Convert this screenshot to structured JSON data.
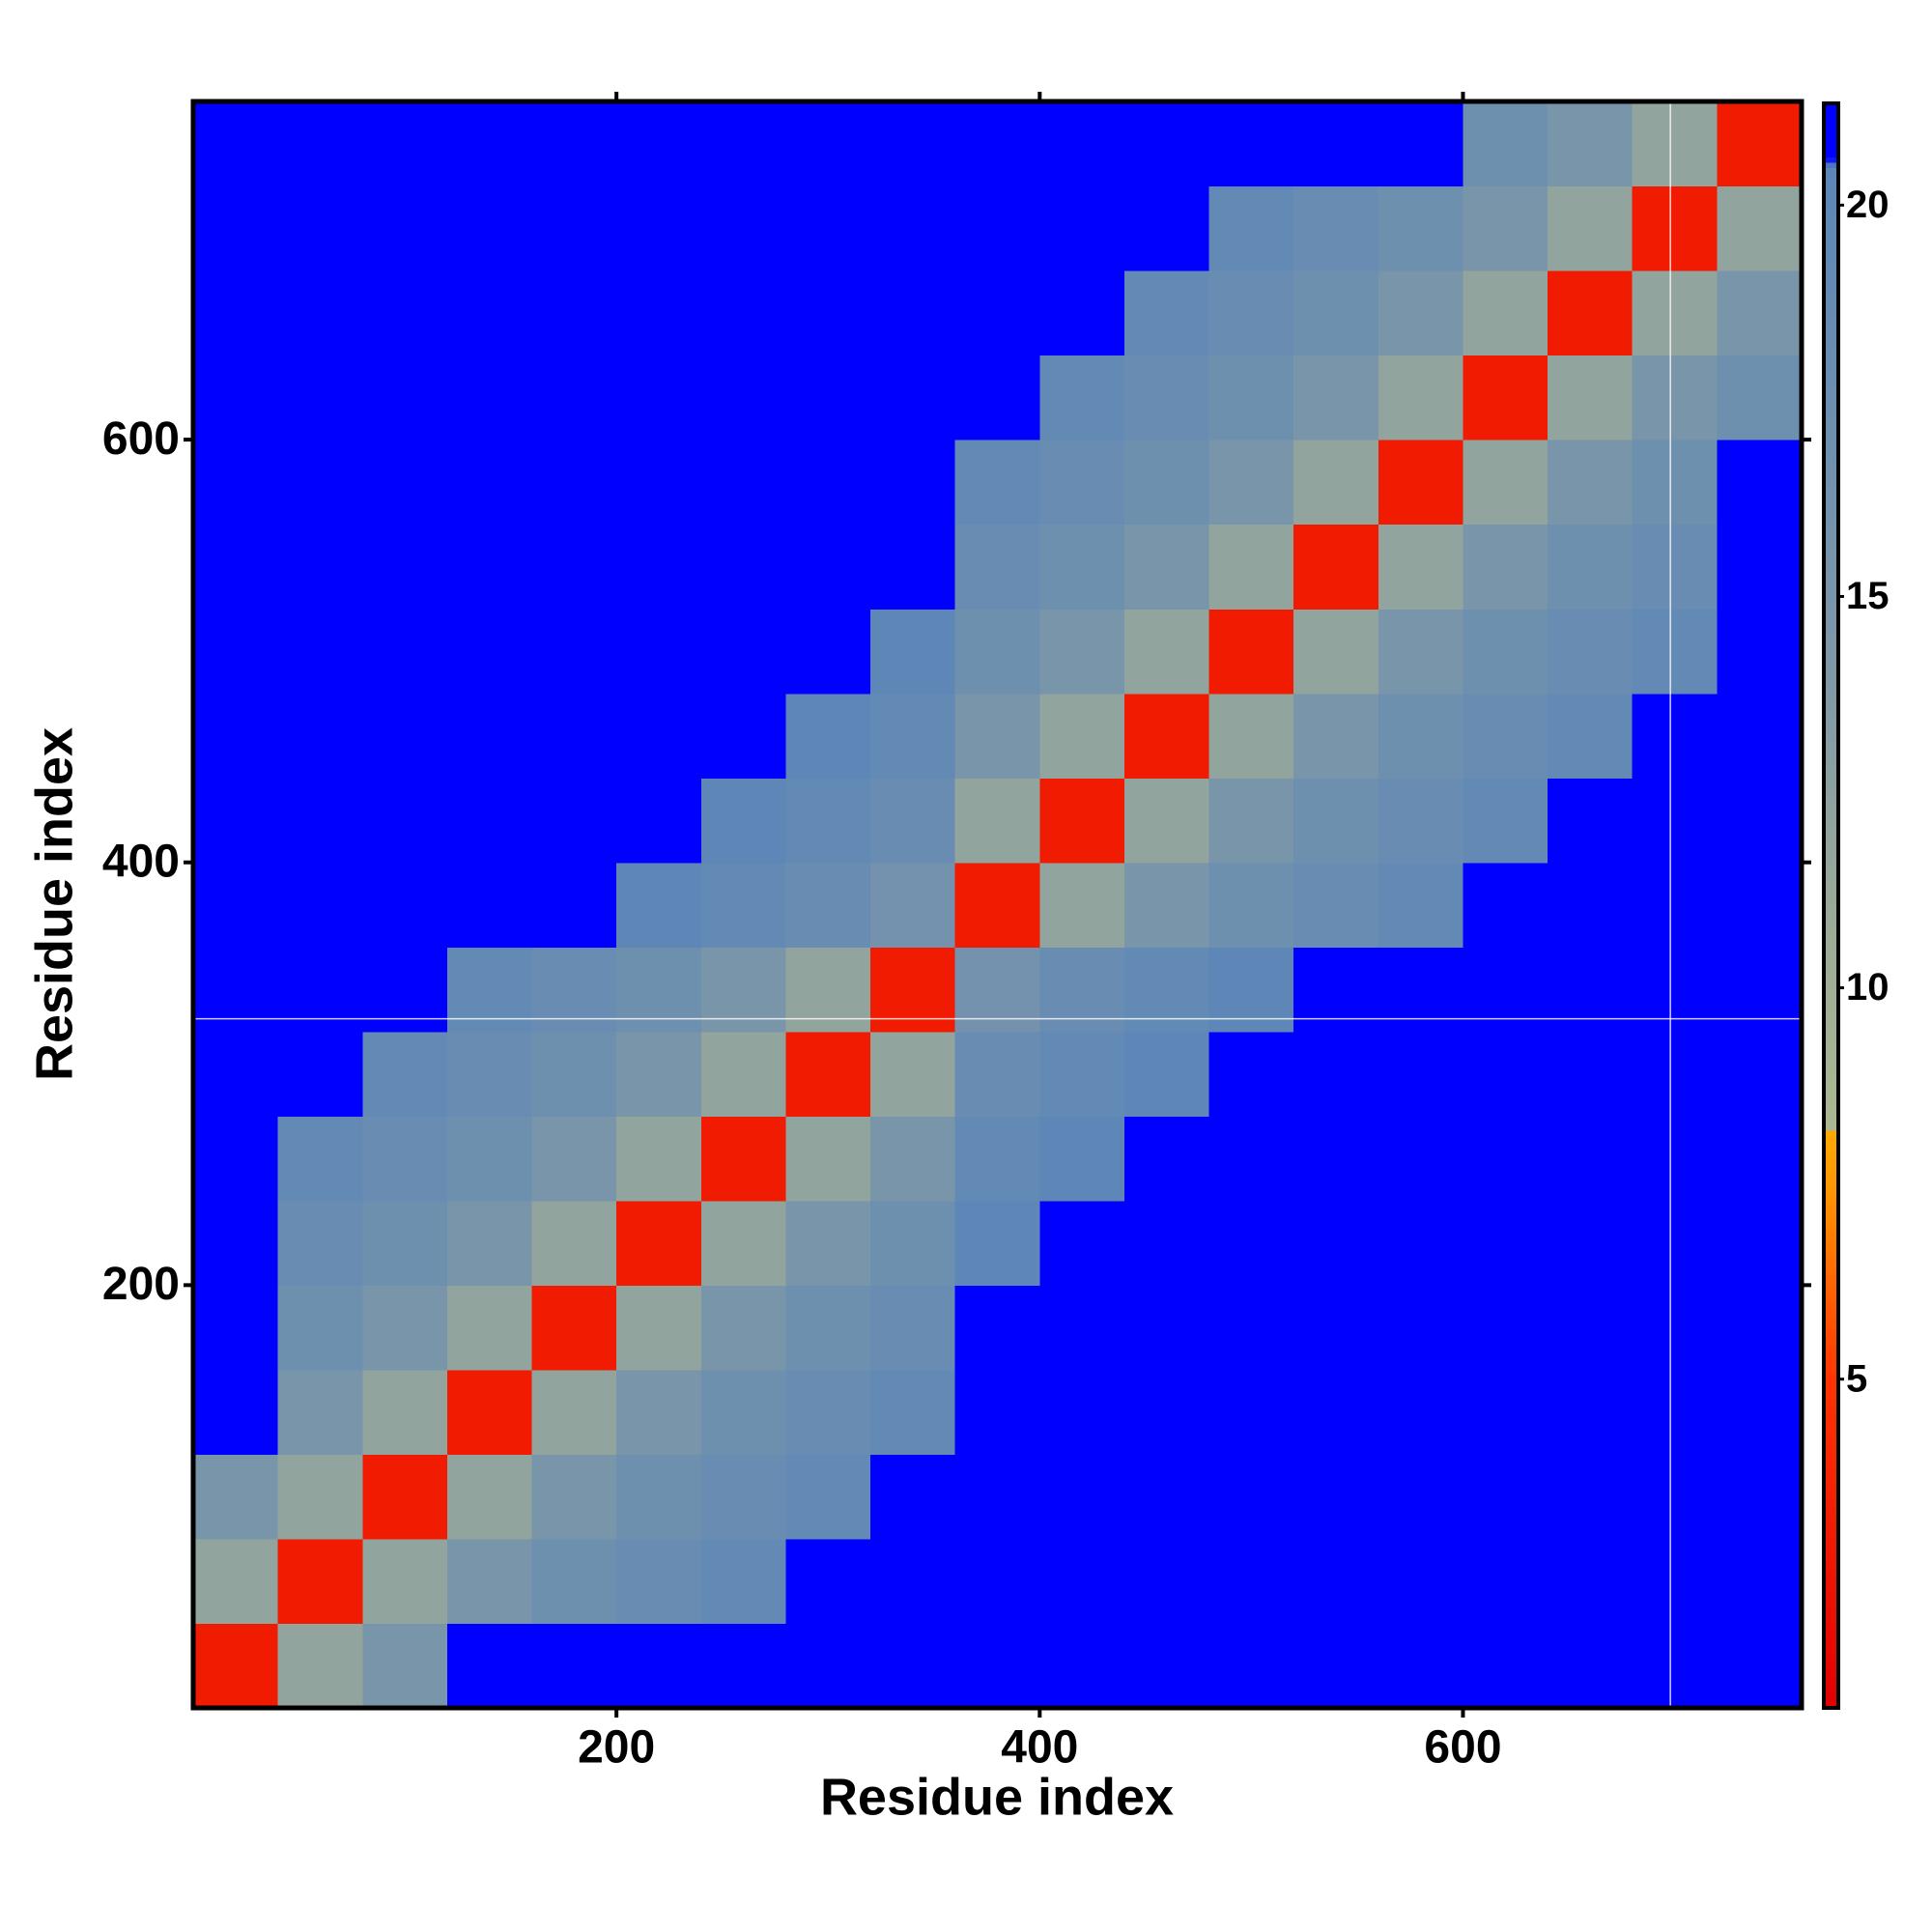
{
  "chart_data": {
    "type": "heatmap",
    "x_label": "Residue index",
    "y_label": "Residue index",
    "bins": [
      0,
      40,
      80,
      120,
      160,
      200,
      240,
      280,
      320,
      360,
      400,
      440,
      480,
      520,
      560,
      600,
      640,
      680,
      720,
      760
    ],
    "values": [
      [
        3,
        12,
        15,
        21,
        21,
        21,
        21,
        21,
        21,
        21,
        21,
        21,
        21,
        21,
        21,
        21,
        21,
        21,
        21
      ],
      [
        12,
        3,
        12,
        15,
        17,
        18,
        19,
        21,
        21,
        21,
        21,
        21,
        21,
        21,
        21,
        21,
        21,
        21,
        21
      ],
      [
        15,
        12,
        3,
        12,
        15,
        17,
        18,
        19,
        21,
        21,
        21,
        21,
        21,
        21,
        21,
        21,
        21,
        21,
        21
      ],
      [
        21,
        15,
        12,
        3,
        12,
        15,
        17,
        18,
        19,
        21,
        21,
        21,
        21,
        21,
        21,
        21,
        21,
        21,
        21
      ],
      [
        21,
        17,
        15,
        12,
        3,
        12,
        15,
        17,
        18,
        21,
        21,
        21,
        21,
        21,
        21,
        21,
        21,
        21,
        21
      ],
      [
        21,
        18,
        17,
        15,
        12,
        3,
        12,
        15,
        17,
        20,
        21,
        21,
        21,
        21,
        21,
        21,
        21,
        21,
        21
      ],
      [
        21,
        19,
        18,
        17,
        15,
        12,
        3,
        12,
        15,
        19,
        20,
        21,
        21,
        21,
        21,
        21,
        21,
        21,
        21
      ],
      [
        21,
        21,
        19,
        18,
        17,
        15,
        12,
        3,
        12,
        18,
        19,
        20,
        21,
        21,
        21,
        21,
        21,
        21,
        21
      ],
      [
        21,
        21,
        21,
        19,
        18,
        17,
        15,
        12,
        3,
        16,
        18,
        19,
        20,
        21,
        21,
        21,
        21,
        21,
        21
      ],
      [
        21,
        21,
        21,
        21,
        21,
        20,
        19,
        18,
        16,
        3,
        12,
        15,
        17,
        18,
        19,
        21,
        21,
        21,
        21
      ],
      [
        21,
        21,
        21,
        21,
        21,
        21,
        20,
        19,
        18,
        12,
        3,
        12,
        15,
        17,
        18,
        19,
        21,
        21,
        21
      ],
      [
        21,
        21,
        21,
        21,
        21,
        21,
        21,
        20,
        19,
        15,
        12,
        3,
        12,
        15,
        17,
        18,
        19,
        21,
        21
      ],
      [
        21,
        21,
        21,
        21,
        21,
        21,
        21,
        21,
        20,
        17,
        15,
        12,
        3,
        12,
        15,
        17,
        18,
        19,
        21
      ],
      [
        21,
        21,
        21,
        21,
        21,
        21,
        21,
        21,
        21,
        18,
        17,
        15,
        12,
        3,
        12,
        15,
        17,
        18,
        21
      ],
      [
        21,
        21,
        21,
        21,
        21,
        21,
        21,
        21,
        21,
        19,
        18,
        17,
        15,
        12,
        3,
        12,
        15,
        17,
        21
      ],
      [
        21,
        21,
        21,
        21,
        21,
        21,
        21,
        21,
        21,
        21,
        19,
        18,
        17,
        15,
        12,
        3,
        12,
        15,
        17
      ],
      [
        21,
        21,
        21,
        21,
        21,
        21,
        21,
        21,
        21,
        21,
        21,
        19,
        18,
        17,
        15,
        12,
        3,
        12,
        15
      ],
      [
        21,
        21,
        21,
        21,
        21,
        21,
        21,
        21,
        21,
        21,
        21,
        21,
        19,
        18,
        17,
        15,
        12,
        3,
        12
      ],
      [
        21,
        21,
        21,
        21,
        21,
        21,
        21,
        21,
        21,
        21,
        21,
        21,
        21,
        21,
        21,
        17,
        15,
        12,
        3
      ]
    ],
    "xlim": [
      0,
      760
    ],
    "ylim": [
      0,
      760
    ],
    "xticks": [
      200,
      400,
      600
    ],
    "yticks": [
      200,
      400,
      600
    ],
    "background": "#0000ff",
    "colorbar": {
      "lim": [
        0.8,
        21.3
      ],
      "ticks": [
        5,
        10,
        15,
        20
      ]
    },
    "colorscale": [
      [
        0.8,
        "#e00000"
      ],
      [
        5,
        "#ff3300"
      ],
      [
        7.5,
        "#ff9900"
      ],
      [
        8.2,
        "#ffaa00"
      ],
      [
        8.21,
        "#a9b890"
      ],
      [
        11,
        "#9aaa98"
      ],
      [
        14,
        "#7f98a8"
      ],
      [
        20.5,
        "#5b86b8"
      ],
      [
        20.6,
        "#0000ff"
      ],
      [
        21.3,
        "#0000ff"
      ]
    ],
    "vlines": [
      698
    ],
    "hlines": [
      326
    ]
  }
}
